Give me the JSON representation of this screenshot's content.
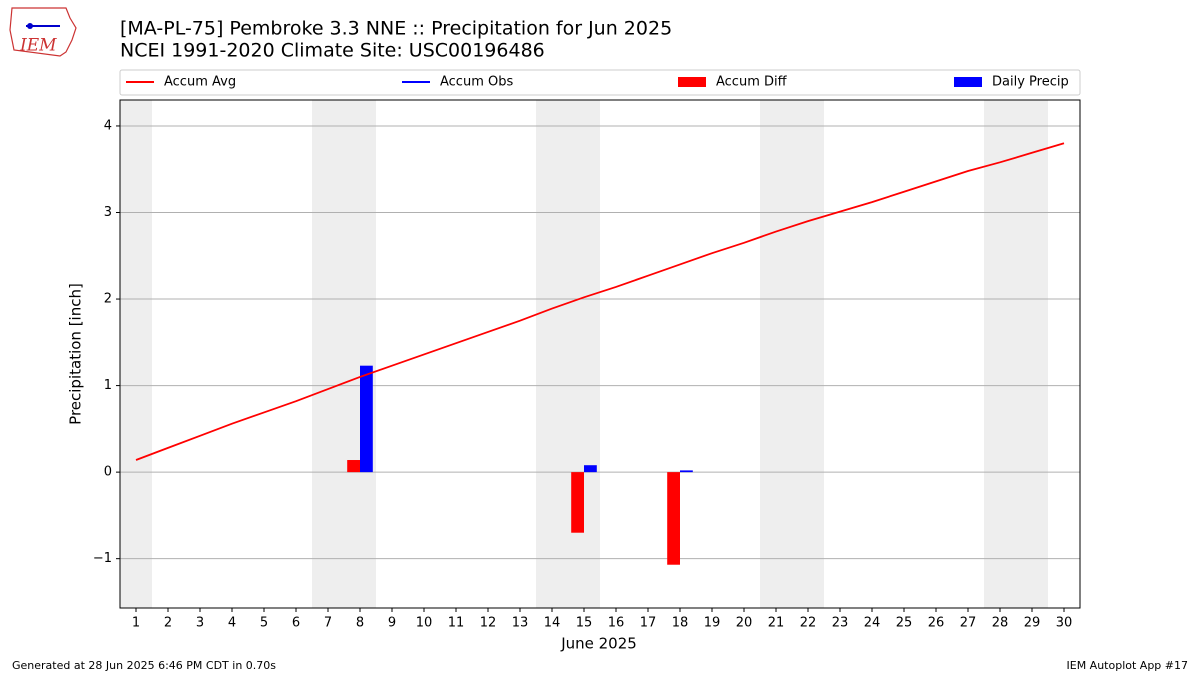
{
  "chart_data": {
    "type": "bar_line",
    "title": "[MA-PL-75] Pembroke 3.3 NNE :: Precipitation for Jun 2025",
    "subtitle": "NCEI 1991-2020 Climate Site: USC00196486",
    "x_label": "June 2025",
    "y_label": "Precipitation [inch]",
    "logo": "IEM",
    "footer_left": "Generated at 28 Jun 2025 6:46 PM CDT in 0.70s",
    "footer_right": "IEM Autoplot App #17",
    "x": [
      1,
      2,
      3,
      4,
      5,
      6,
      7,
      8,
      9,
      10,
      11,
      12,
      13,
      14,
      15,
      16,
      17,
      18,
      19,
      20,
      21,
      22,
      23,
      24,
      25,
      26,
      27,
      28,
      29,
      30
    ],
    "xlim": [
      0.5,
      30.5
    ],
    "xticks": [
      1,
      2,
      3,
      4,
      5,
      6,
      7,
      8,
      9,
      10,
      11,
      12,
      13,
      14,
      15,
      16,
      17,
      18,
      19,
      20,
      21,
      22,
      23,
      24,
      25,
      26,
      27,
      28,
      29,
      30
    ],
    "ylim": [
      -1.57,
      4.3
    ],
    "yticks": [
      {
        "value": -1,
        "label": "−1"
      },
      0,
      1,
      2,
      3,
      4
    ],
    "grid": true,
    "shaded_days": [
      1,
      7,
      8,
      14,
      15,
      21,
      22,
      28,
      29
    ],
    "series": [
      {
        "name": "Accum Avg",
        "kind": "line",
        "color": "#ff0000",
        "values": [
          0.14,
          0.28,
          0.42,
          0.56,
          0.69,
          0.82,
          0.96,
          1.1,
          1.23,
          1.36,
          1.49,
          1.62,
          1.75,
          1.89,
          2.02,
          2.14,
          2.27,
          2.4,
          2.53,
          2.65,
          2.78,
          2.9,
          3.01,
          3.12,
          3.24,
          3.36,
          3.48,
          3.58,
          3.69,
          3.8
        ]
      },
      {
        "name": "Accum Obs",
        "kind": "line",
        "color": "#0000ff"
      },
      {
        "name": "Accum Diff",
        "kind": "bar",
        "color": "#ff0000",
        "offset": -1,
        "values": [
          null,
          null,
          null,
          null,
          null,
          null,
          null,
          0.14,
          null,
          null,
          null,
          null,
          null,
          null,
          -0.7,
          null,
          null,
          -1.07,
          null,
          null,
          null,
          null,
          null,
          null,
          null,
          null,
          null,
          null,
          null,
          null
        ]
      },
      {
        "name": "Daily Precip",
        "kind": "bar",
        "color": "#0000ff",
        "offset": 1,
        "values": [
          null,
          null,
          null,
          null,
          null,
          null,
          null,
          1.23,
          null,
          null,
          null,
          null,
          null,
          null,
          0.08,
          null,
          null,
          0.02,
          null,
          null,
          null,
          null,
          null,
          null,
          null,
          null,
          null,
          null,
          null,
          null
        ]
      }
    ]
  }
}
